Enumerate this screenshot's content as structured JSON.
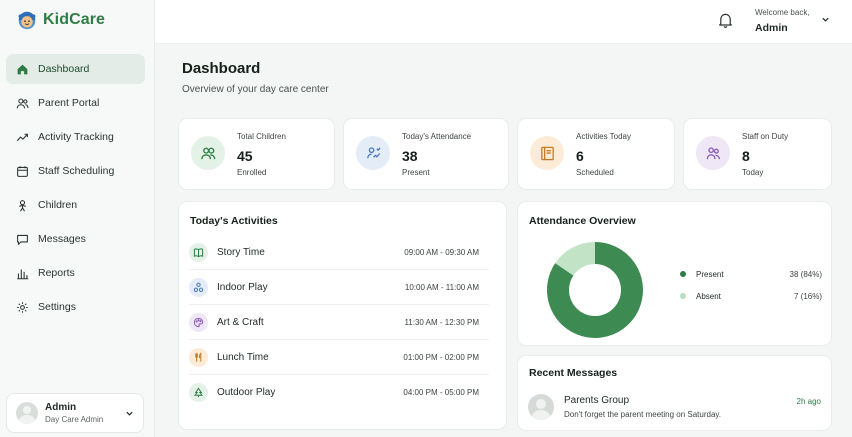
{
  "brand": {
    "name": "KidCare",
    "accent": "#2f7d46"
  },
  "nav": {
    "items": [
      {
        "label": "Dashboard",
        "icon": "home-icon",
        "active": true
      },
      {
        "label": "Parent Portal",
        "icon": "users-icon"
      },
      {
        "label": "Activity Tracking",
        "icon": "trend-icon"
      },
      {
        "label": "Staff Scheduling",
        "icon": "calendar-icon"
      },
      {
        "label": "Children",
        "icon": "child-icon"
      },
      {
        "label": "Messages",
        "icon": "message-icon"
      },
      {
        "label": "Reports",
        "icon": "bar-chart-icon"
      },
      {
        "label": "Settings",
        "icon": "gear-icon"
      }
    ]
  },
  "user": {
    "name": "Admin",
    "role": "Day Care Admin"
  },
  "header": {
    "welcome_label": "Welcome back,",
    "user_name": "Admin"
  },
  "page": {
    "title": "Dashboard",
    "subtitle": "Overview of your day care center"
  },
  "stats": [
    {
      "label": "Total Children",
      "value": "45",
      "sub": "Enrolled",
      "icon": "children-icon",
      "bg": "#e3f1e6",
      "color": "#2f7d46"
    },
    {
      "label": "Today's Attendance",
      "value": "38",
      "sub": "Present",
      "icon": "attendance-icon",
      "bg": "#e4ecf7",
      "color": "#4a78b8"
    },
    {
      "label": "Activities Today",
      "value": "6",
      "sub": "Scheduled",
      "icon": "book-icon",
      "bg": "#fcebd6",
      "color": "#c77b25"
    },
    {
      "label": "Staff on Duty",
      "value": "8",
      "sub": "Today",
      "icon": "staff-icon",
      "bg": "#efe6f6",
      "color": "#8a5bb6"
    }
  ],
  "activities": {
    "title": "Today's Activities",
    "items": [
      {
        "name": "Story Time",
        "time": "09:00 AM - 09:30 AM",
        "icon": "book-open-icon",
        "bg": "#e3f1e6",
        "color": "#2f7d46"
      },
      {
        "name": "Indoor Play",
        "time": "10:00 AM - 11:00 AM",
        "icon": "blocks-icon",
        "bg": "#e4ecf7",
        "color": "#4a78b8"
      },
      {
        "name": "Art & Craft",
        "time": "11:30 AM - 12:30 PM",
        "icon": "palette-icon",
        "bg": "#efe6f6",
        "color": "#8a5bb6"
      },
      {
        "name": "Lunch Time",
        "time": "01:00 PM - 02:00 PM",
        "icon": "utensils-icon",
        "bg": "#fcebd6",
        "color": "#c77b25"
      },
      {
        "name": "Outdoor Play",
        "time": "04:00 PM - 05:00 PM",
        "icon": "tree-icon",
        "bg": "#e3f1e6",
        "color": "#2f7d46"
      }
    ]
  },
  "attendance": {
    "title": "Attendance Overview",
    "legend": [
      {
        "label": "Present",
        "value": "38 (84%)",
        "color": "#2f7d46"
      },
      {
        "label": "Absent",
        "value": "7 (16%)",
        "color": "#b7dcbc"
      }
    ]
  },
  "chart_data": {
    "type": "pie",
    "categories": [
      "Present",
      "Absent"
    ],
    "values": [
      38,
      7
    ],
    "colors": [
      "#3d8a52",
      "#c2e3c6"
    ]
  },
  "messages": {
    "title": "Recent Messages",
    "items": [
      {
        "sender": "Parents Group",
        "text": "Don't forget the parent meeting on Saturday.",
        "time": "2h ago",
        "time_color": "#2f7d46"
      }
    ]
  }
}
